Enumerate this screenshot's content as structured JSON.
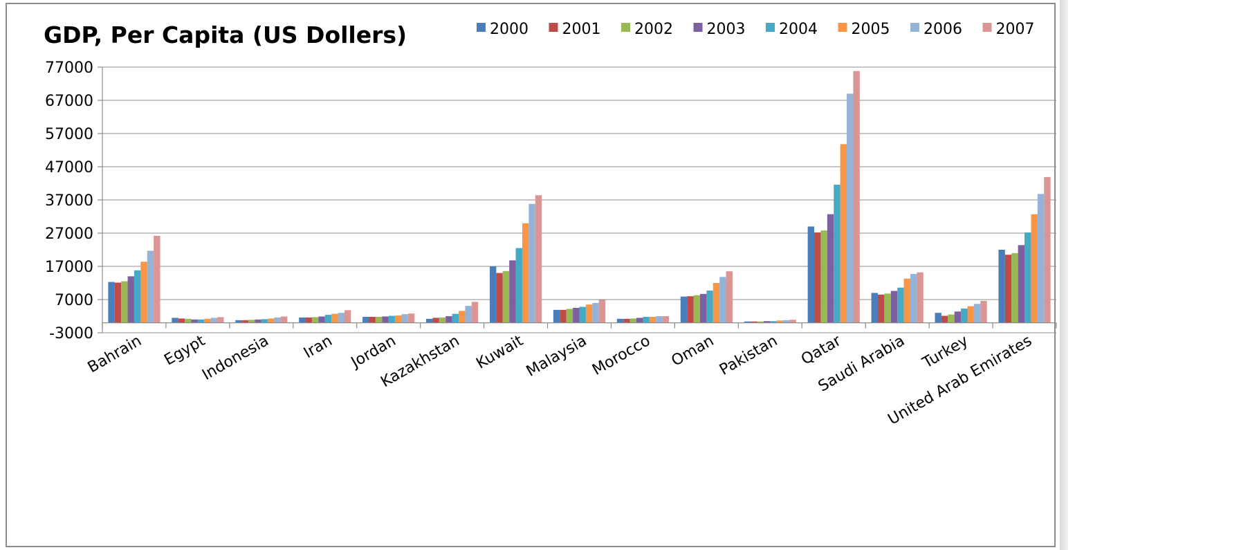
{
  "chart_data": {
    "type": "bar",
    "title": "GDP, Per Capita (US Dollers)",
    "xlabel": "",
    "ylabel": "",
    "ylim": [
      -3000,
      77000
    ],
    "yticks": [
      -3000,
      7000,
      17000,
      27000,
      37000,
      47000,
      57000,
      67000,
      77000
    ],
    "ytick_labels": [
      "-3000",
      "7000",
      "17000",
      "27000",
      "37000",
      "47000",
      "57000",
      "67000",
      "77000"
    ],
    "grid": true,
    "legend_position": "top-right",
    "categories": [
      "Bahrain",
      "Egypt",
      "Indonesia",
      "Iran",
      "Jordan",
      "Kazakhstan",
      "Kuwait",
      "Malaysia",
      "Morocco",
      "Oman",
      "Pakistan",
      "Qatar",
      "Saudi Arabia",
      "Turkey",
      "United Arab Emirates"
    ],
    "series": [
      {
        "name": "2000",
        "color": "#4a7ebb",
        "values": [
          12300,
          1500,
          800,
          1600,
          1800,
          1200,
          17000,
          3900,
          1200,
          7900,
          400,
          29000,
          9000,
          3000,
          22000
        ]
      },
      {
        "name": "2001",
        "color": "#be4b48",
        "values": [
          12100,
          1300,
          800,
          1600,
          1800,
          1500,
          15000,
          3900,
          1200,
          8000,
          400,
          27200,
          8500,
          2100,
          20500
        ]
      },
      {
        "name": "2002",
        "color": "#98b954",
        "values": [
          12500,
          1200,
          900,
          1700,
          1800,
          1600,
          15600,
          4200,
          1300,
          8300,
          400,
          27800,
          8800,
          2500,
          21000
        ]
      },
      {
        "name": "2003",
        "color": "#7d60a0",
        "values": [
          14000,
          1000,
          1000,
          1900,
          1900,
          2000,
          18800,
          4500,
          1500,
          8700,
          500,
          32700,
          9600,
          3400,
          23400
        ]
      },
      {
        "name": "2004",
        "color": "#46aac5",
        "values": [
          15800,
          1000,
          1100,
          2400,
          2100,
          2700,
          22500,
          4800,
          1800,
          9700,
          500,
          41600,
          10600,
          4300,
          27200
        ]
      },
      {
        "name": "2005",
        "color": "#f79646",
        "values": [
          18400,
          1200,
          1300,
          2700,
          2200,
          3600,
          30000,
          5500,
          1800,
          12000,
          700,
          53800,
          13300,
          5000,
          32700
        ]
      },
      {
        "name": "2006",
        "color": "#95b3d7",
        "values": [
          21700,
          1500,
          1600,
          3000,
          2600,
          5100,
          35800,
          6000,
          2000,
          13800,
          800,
          69000,
          14700,
          5700,
          38800
        ]
      },
      {
        "name": "2007",
        "color": "#d99694",
        "values": [
          26200,
          1700,
          1900,
          3800,
          2800,
          6300,
          38400,
          6900,
          2000,
          15500,
          900,
          75800,
          15200,
          6600,
          43900
        ]
      }
    ]
  }
}
